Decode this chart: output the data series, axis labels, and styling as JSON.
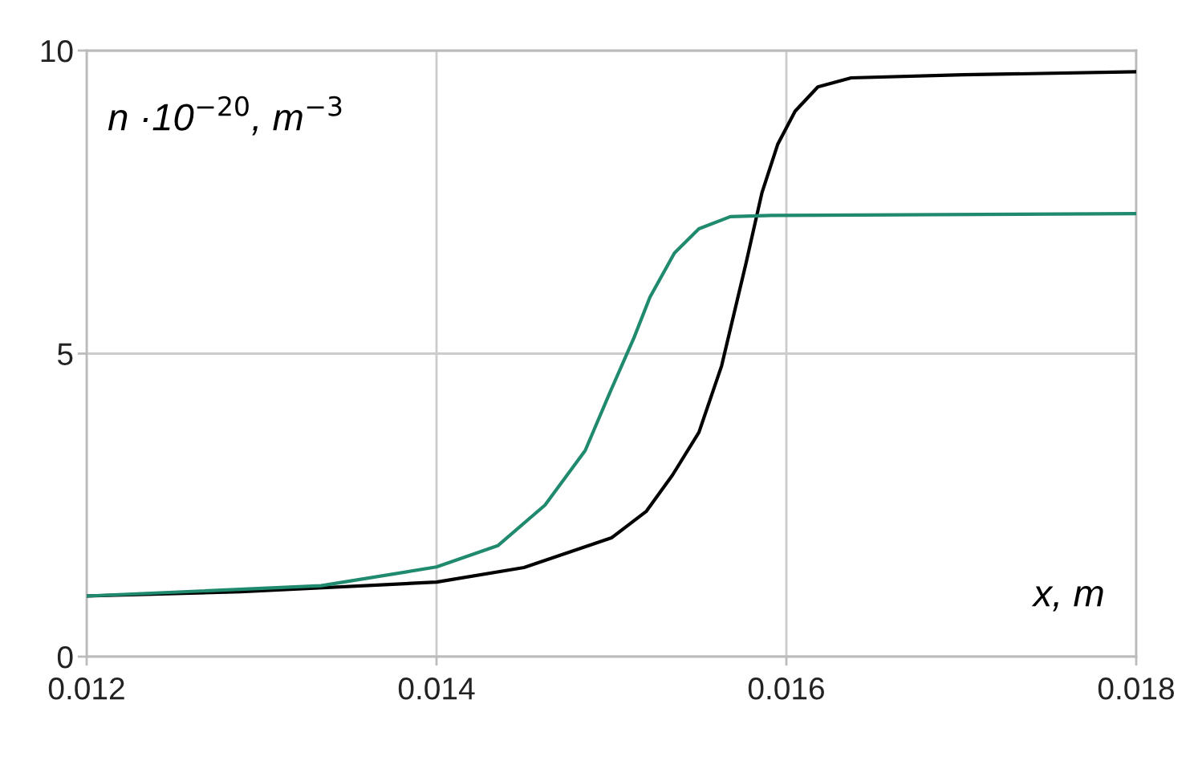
{
  "chart_data": {
    "type": "line",
    "xlabel": "x, m",
    "ylabel": "n ·10$^{−20}$, m$^{−3}$",
    "series": [
      {
        "color": "#000000",
        "x": [
          0.012,
          0.01288,
          0.014,
          0.0145,
          0.015,
          0.0152,
          0.01535,
          0.0155,
          0.01563,
          0.01577,
          0.01586,
          0.01595,
          0.01605,
          0.01618,
          0.01637,
          0.01701,
          0.018
        ],
        "values": [
          1.0,
          1.07,
          1.23,
          1.47,
          1.96,
          2.4,
          3.0,
          3.7,
          4.8,
          6.5,
          7.65,
          8.45,
          9.0,
          9.4,
          9.55,
          9.6,
          9.65
        ]
      },
      {
        "color": "#1f8a6e",
        "x": [
          0.012,
          0.01334,
          0.014,
          0.01435,
          0.01462,
          0.01485,
          0.01499,
          0.01513,
          0.01522,
          0.01536,
          0.0155,
          0.01568,
          0.01591,
          0.018
        ],
        "values": [
          1.0,
          1.17,
          1.48,
          1.83,
          2.5,
          3.4,
          4.35,
          5.27,
          5.93,
          6.66,
          7.06,
          7.26,
          7.28,
          7.31
        ]
      }
    ],
    "xlim": [
      0.012,
      0.018
    ],
    "xticks": [
      0.012,
      0.014,
      0.016,
      0.018
    ],
    "ylim": [
      0,
      10
    ],
    "yticks": [
      0,
      5,
      10
    ],
    "grid": true,
    "line_style": "solid",
    "marker": "none"
  }
}
